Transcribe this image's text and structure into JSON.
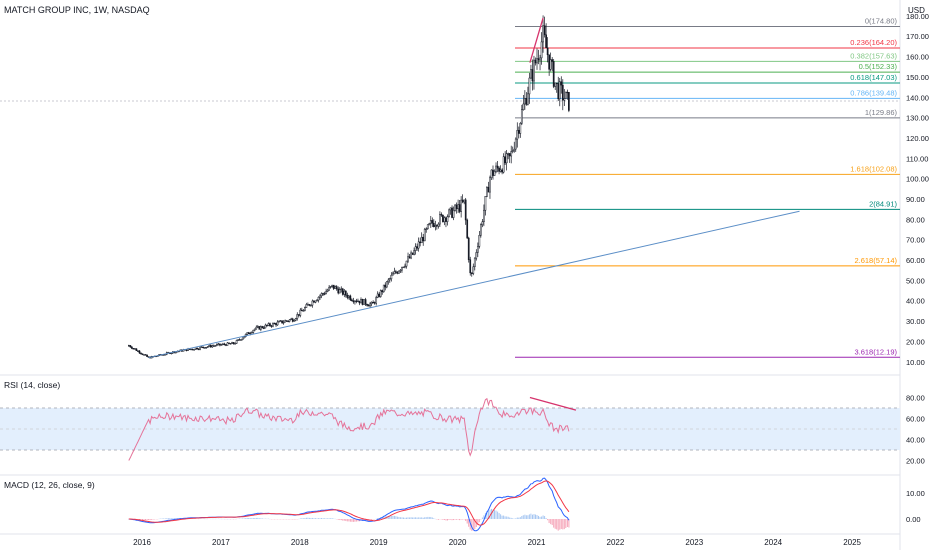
{
  "header": {
    "symbol_line": "MATCH GROUP INC, 1W, NASDAQ",
    "currency": "USD"
  },
  "price_axis": {
    "ticks": [
      "180.00",
      "170.00",
      "160.00",
      "150.00",
      "140.00",
      "130.00",
      "120.00",
      "110.00",
      "100.00",
      "90.00",
      "80.00",
      "70.00",
      "60.00",
      "50.00",
      "40.00",
      "30.00",
      "20.00",
      "10.00"
    ]
  },
  "time_axis": {
    "ticks": [
      "2016",
      "2017",
      "2018",
      "2019",
      "2020",
      "2021",
      "2022",
      "2023",
      "2024",
      "2025"
    ]
  },
  "fibonacci": [
    {
      "label": "0(174.80)",
      "price": 174.8,
      "color": "#787b86"
    },
    {
      "label": "0.236(164.20)",
      "price": 164.2,
      "color": "#f23645"
    },
    {
      "label": "0.382(157.63)",
      "price": 157.63,
      "color": "#81c784"
    },
    {
      "label": "0.5(152.33)",
      "price": 152.33,
      "color": "#4caf50"
    },
    {
      "label": "0.618(147.03)",
      "price": 147.03,
      "color": "#089981"
    },
    {
      "label": "0.786(139.48)",
      "price": 139.48,
      "color": "#64b5f6"
    },
    {
      "label": "1(129.86)",
      "price": 129.86,
      "color": "#787b86"
    },
    {
      "label": "1.618(102.08)",
      "price": 102.08,
      "color": "#f7a21b"
    },
    {
      "label": "2(84.91)",
      "price": 84.91,
      "color": "#00897b"
    },
    {
      "label": "2.618(57.14)",
      "price": 57.14,
      "color": "#ff9800"
    },
    {
      "label": "3.618(12.19)",
      "price": 12.19,
      "color": "#9c27b0"
    }
  ],
  "colors": {
    "candle": "#131722",
    "trendline": "#5b8ec7",
    "divergence": "#d6336c",
    "rsi": "#e57399",
    "rsi_band": "#e3effd",
    "macd": "#2962ff",
    "signal": "#f23645",
    "hist_up": "#a7c7f2",
    "hist_down": "#f5a3b7"
  },
  "rsi_panel": {
    "title": "RSI (14, close)",
    "ticks": [
      "80.00",
      "60.00",
      "40.00",
      "20.00"
    ]
  },
  "macd_panel": {
    "title": "MACD (12, 26, close, 9)",
    "ticks": [
      "10.00",
      "0.00"
    ]
  },
  "chart_data": {
    "type": "candlestick",
    "title": "MATCH GROUP INC, 1W, NASDAQ",
    "ylim": [
      5,
      183
    ],
    "x_range": [
      "2015-09",
      "2025-08"
    ],
    "price_series_approx": [
      {
        "x": "2015-11",
        "close": 18
      },
      {
        "x": "2016-02",
        "close": 12
      },
      {
        "x": "2016-06",
        "close": 15
      },
      {
        "x": "2016-12",
        "close": 18
      },
      {
        "x": "2017-03",
        "close": 19
      },
      {
        "x": "2017-06",
        "close": 26
      },
      {
        "x": "2017-12",
        "close": 31
      },
      {
        "x": "2018-03",
        "close": 40
      },
      {
        "x": "2018-06",
        "close": 47
      },
      {
        "x": "2018-09",
        "close": 41
      },
      {
        "x": "2018-12",
        "close": 38
      },
      {
        "x": "2019-03",
        "close": 52
      },
      {
        "x": "2019-06",
        "close": 62
      },
      {
        "x": "2019-09",
        "close": 78
      },
      {
        "x": "2019-12",
        "close": 83
      },
      {
        "x": "2020-02",
        "close": 88
      },
      {
        "x": "2020-03",
        "close": 50
      },
      {
        "x": "2020-06",
        "close": 102
      },
      {
        "x": "2020-09",
        "close": 110
      },
      {
        "x": "2020-12",
        "close": 148
      },
      {
        "x": "2021-02",
        "close": 170
      },
      {
        "x": "2021-04",
        "close": 145
      },
      {
        "x": "2021-06",
        "close": 137
      }
    ],
    "trendline": [
      {
        "x": "2016-02",
        "y": 12
      },
      {
        "x": "2024-05",
        "y": 84
      }
    ],
    "rsi_divergence_line": [
      {
        "x": "2020-12",
        "y": 80
      },
      {
        "x": "2021-07",
        "y": 68
      }
    ],
    "price_divergence_line": [
      {
        "x": "2020-12",
        "y": 157
      },
      {
        "x": "2021-02",
        "y": 179
      }
    ]
  }
}
